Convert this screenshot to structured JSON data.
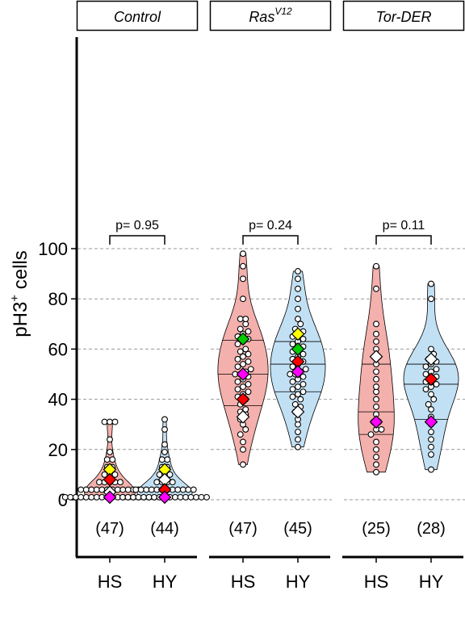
{
  "chart_data": {
    "type": "violin",
    "ylabel_main": "pH3",
    "ylabel_sup": "+",
    "ylabel_rest": " cells",
    "yticks": [
      0,
      20,
      40,
      60,
      80,
      100
    ],
    "ylim": [
      -20,
      120
    ],
    "gridlines": [
      0,
      20,
      40,
      60,
      80,
      100
    ],
    "colors": {
      "HS": "#f4b0ac",
      "HY": "#c2e0f4",
      "grid": "#999999"
    },
    "panels": [
      {
        "name": "Control",
        "sup": "",
        "pvalue": "p= 0.95",
        "groups": [
          {
            "label": "HS",
            "n": "(47)",
            "values": [
              1,
              1,
              1,
              1,
              1,
              1,
              1,
              1,
              1,
              1,
              1,
              1,
              1,
              1,
              1,
              1,
              1,
              1,
              4,
              4,
              4,
              4,
              4,
              4,
              4,
              4,
              4,
              4,
              4,
              4,
              7,
              7,
              7,
              7,
              7,
              10,
              10,
              10,
              13,
              13,
              16,
              16,
              19,
              31,
              31,
              31,
              24
            ],
            "quartiles": [],
            "markers": [
              {
                "color": "#ffff00",
                "value": 12
              },
              {
                "color": "#ff0000",
                "value": 8
              },
              {
                "color": "#ffffff",
                "value": 3
              },
              {
                "color": "#ff00ff",
                "value": 1
              }
            ]
          },
          {
            "label": "HY",
            "n": "(44)",
            "values": [
              1,
              1,
              1,
              1,
              1,
              1,
              1,
              1,
              1,
              1,
              1,
              1,
              1,
              1,
              1,
              1,
              1,
              4,
              4,
              4,
              4,
              4,
              4,
              4,
              4,
              4,
              4,
              4,
              4,
              7,
              7,
              7,
              7,
              10,
              10,
              10,
              13,
              13,
              16,
              16,
              19,
              28,
              32,
              22
            ],
            "quartiles": [],
            "markers": [
              {
                "color": "#ffff00",
                "value": 12
              },
              {
                "color": "#ffffff",
                "value": 8
              },
              {
                "color": "#ff0000",
                "value": 4
              },
              {
                "color": "#ff00ff",
                "value": 1
              }
            ]
          }
        ]
      },
      {
        "name": "Ras",
        "sup": "V12",
        "pvalue": "p= 0.24",
        "groups": [
          {
            "label": "HS",
            "n": "(47)",
            "values": [
              14,
              20,
              23,
              26,
              28,
              30,
              32,
              34,
              35,
              36,
              38,
              40,
              41,
              42,
              43,
              44,
              45,
              46,
              47,
              48,
              49,
              50,
              50,
              51,
              52,
              53,
              54,
              55,
              56,
              57,
              58,
              59,
              60,
              62,
              63,
              64,
              65,
              66,
              67,
              68,
              70,
              72,
              72,
              80,
              88,
              93,
              98
            ],
            "quartiles": [
              37.5,
              50,
              63.5
            ],
            "markers": [
              {
                "color": "#00cc00",
                "value": 64
              },
              {
                "color": "#ff00ff",
                "value": 50
              },
              {
                "color": "#ff0000",
                "value": 40
              },
              {
                "color": "#ffffff",
                "value": 33
              }
            ]
          },
          {
            "label": "HY",
            "n": "(45)",
            "values": [
              21,
              24,
              27,
              30,
              32,
              35,
              37,
              38,
              40,
              41,
              42,
              43,
              44,
              45,
              46,
              47,
              48,
              49,
              50,
              50,
              51,
              52,
              53,
              54,
              55,
              56,
              57,
              58,
              59,
              60,
              61,
              62,
              63,
              64,
              65,
              66,
              67,
              68,
              70,
              72,
              76,
              80,
              84,
              88,
              91
            ],
            "quartiles": [
              43,
              54,
              63
            ],
            "markers": [
              {
                "color": "#ffff00",
                "value": 66
              },
              {
                "color": "#00cc00",
                "value": 60
              },
              {
                "color": "#ff0000",
                "value": 55
              },
              {
                "color": "#ff00ff",
                "value": 51
              },
              {
                "color": "#ffffff",
                "value": 35
              }
            ]
          }
        ]
      },
      {
        "name": "Tor-DER",
        "sup": "",
        "pvalue": "p= 0.11",
        "groups": [
          {
            "label": "HS",
            "n": "(25)",
            "values": [
              11,
              14,
              17,
              20,
              23,
              26,
              28,
              31,
              34,
              37,
              40,
              43,
              45,
              48,
              51,
              54,
              57,
              60,
              63,
              66,
              70,
              84,
              93,
              28,
              31
            ],
            "quartiles": [
              26,
              35,
              54
            ],
            "markers": [
              {
                "color": "#ffffff",
                "value": 57
              },
              {
                "color": "#ff00ff",
                "value": 31
              }
            ]
          },
          {
            "label": "HY",
            "n": "(28)",
            "values": [
              12,
              18,
              21,
              24,
              27,
              30,
              33,
              36,
              38,
              40,
              42,
              44,
              45,
              46,
              47,
              48,
              49,
              50,
              51,
              52,
              53,
              54,
              55,
              56,
              58,
              60,
              80,
              86
            ],
            "quartiles": [
              32,
              46,
              54
            ],
            "markers": [
              {
                "color": "#ffffff",
                "value": 56
              },
              {
                "color": "#ff0000",
                "value": 48
              },
              {
                "color": "#ff00ff",
                "value": 31
              }
            ]
          }
        ]
      }
    ]
  }
}
